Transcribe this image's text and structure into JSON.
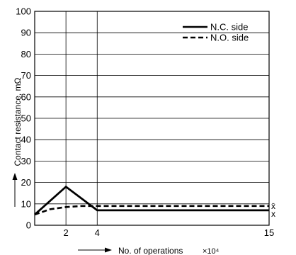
{
  "chart_data": {
    "type": "line",
    "xlabel": "No. of operations",
    "xlabel_unit": "×10⁴",
    "ylabel": "Contact resistance, mΩ",
    "xlim": [
      0,
      15
    ],
    "ylim": [
      0,
      100
    ],
    "x_ticks": [
      2,
      4,
      15
    ],
    "y_ticks": [
      0,
      10,
      20,
      30,
      40,
      50,
      60,
      70,
      80,
      90,
      100
    ],
    "grid": "horizontal lines plus vertical lines at x=2 and x=4",
    "legend_position": "top-right",
    "series": [
      {
        "name": "N.C. side",
        "style": "solid",
        "x": [
          0,
          2,
          4,
          15
        ],
        "y": [
          5,
          18,
          7,
          7
        ]
      },
      {
        "name": "N.O. side",
        "style": "dashed",
        "x": [
          0,
          1,
          2,
          3,
          4,
          15
        ],
        "y": [
          5,
          7.5,
          8.5,
          9,
          9,
          9
        ]
      }
    ],
    "annotations": [
      "x̄",
      "x"
    ]
  }
}
